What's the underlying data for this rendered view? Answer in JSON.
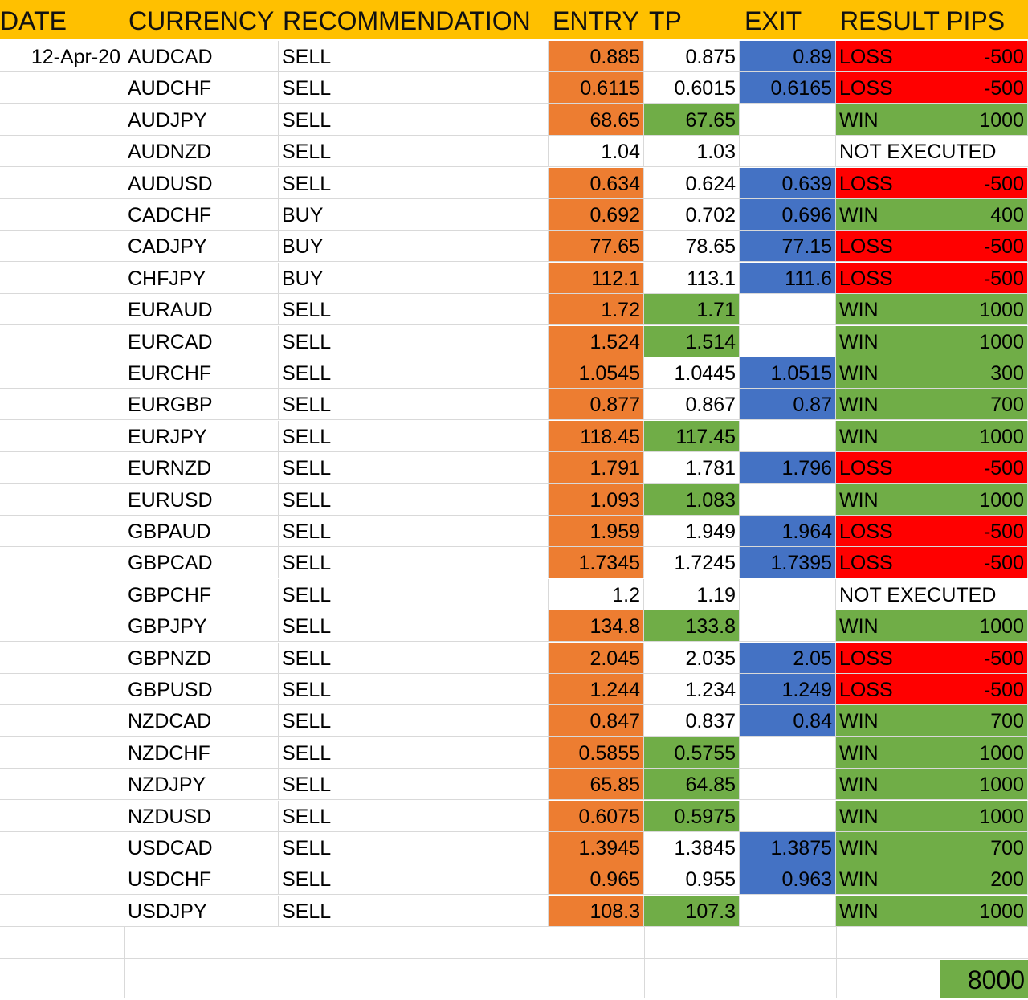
{
  "header": {
    "date": "DATE",
    "currency": "CURRENCY",
    "recommendation": "RECOMMENDATION",
    "entry": "ENTRY",
    "tp": "TP",
    "exit": "EXIT",
    "result_pips": "RESULT PIPS"
  },
  "colors": {
    "header": "#FFC000",
    "entry_filled": "#ED7D31",
    "tp_hit": "#70AD47",
    "exit_stop": "#4472C4",
    "loss": "#FF0000",
    "win": "#70AD47"
  },
  "rows": [
    {
      "date": "12-Apr-20",
      "currency": "AUDCAD",
      "rec": "SELL",
      "entry": "0.885",
      "tp": "0.875",
      "exit": "0.89",
      "result": "LOSS",
      "pips": "-500"
    },
    {
      "date": "",
      "currency": "AUDCHF",
      "rec": "SELL",
      "entry": "0.6115",
      "tp": "0.6015",
      "exit": "0.6165",
      "result": "LOSS",
      "pips": "-500"
    },
    {
      "date": "",
      "currency": "AUDJPY",
      "rec": "SELL",
      "entry": "68.65",
      "tp": "67.65",
      "exit": "",
      "result": "WIN",
      "pips": "1000"
    },
    {
      "date": "",
      "currency": "AUDNZD",
      "rec": "SELL",
      "entry": "1.04",
      "tp": "1.03",
      "exit": "",
      "result": "NOT EXECUTED",
      "pips": ""
    },
    {
      "date": "",
      "currency": "AUDUSD",
      "rec": "SELL",
      "entry": "0.634",
      "tp": "0.624",
      "exit": "0.639",
      "result": "LOSS",
      "pips": "-500"
    },
    {
      "date": "",
      "currency": "CADCHF",
      "rec": "BUY",
      "entry": "0.692",
      "tp": "0.702",
      "exit": "0.696",
      "result": "WIN",
      "pips": "400"
    },
    {
      "date": "",
      "currency": "CADJPY",
      "rec": "BUY",
      "entry": "77.65",
      "tp": "78.65",
      "exit": "77.15",
      "result": "LOSS",
      "pips": "-500"
    },
    {
      "date": "",
      "currency": "CHFJPY",
      "rec": "BUY",
      "entry": "112.1",
      "tp": "113.1",
      "exit": "111.6",
      "result": "LOSS",
      "pips": "-500"
    },
    {
      "date": "",
      "currency": "EURAUD",
      "rec": "SELL",
      "entry": "1.72",
      "tp": "1.71",
      "exit": "",
      "result": "WIN",
      "pips": "1000"
    },
    {
      "date": "",
      "currency": "EURCAD",
      "rec": "SELL",
      "entry": "1.524",
      "tp": "1.514",
      "exit": "",
      "result": "WIN",
      "pips": "1000"
    },
    {
      "date": "",
      "currency": "EURCHF",
      "rec": "SELL",
      "entry": "1.0545",
      "tp": "1.0445",
      "exit": "1.0515",
      "result": "WIN",
      "pips": "300"
    },
    {
      "date": "",
      "currency": "EURGBP",
      "rec": "SELL",
      "entry": "0.877",
      "tp": "0.867",
      "exit": "0.87",
      "result": "WIN",
      "pips": "700"
    },
    {
      "date": "",
      "currency": "EURJPY",
      "rec": "SELL",
      "entry": "118.45",
      "tp": "117.45",
      "exit": "",
      "result": "WIN",
      "pips": "1000"
    },
    {
      "date": "",
      "currency": "EURNZD",
      "rec": "SELL",
      "entry": "1.791",
      "tp": "1.781",
      "exit": "1.796",
      "result": "LOSS",
      "pips": "-500"
    },
    {
      "date": "",
      "currency": "EURUSD",
      "rec": "SELL",
      "entry": "1.093",
      "tp": "1.083",
      "exit": "",
      "result": "WIN",
      "pips": "1000"
    },
    {
      "date": "",
      "currency": "GBPAUD",
      "rec": "SELL",
      "entry": "1.959",
      "tp": "1.949",
      "exit": "1.964",
      "result": "LOSS",
      "pips": "-500"
    },
    {
      "date": "",
      "currency": "GBPCAD",
      "rec": "SELL",
      "entry": "1.7345",
      "tp": "1.7245",
      "exit": "1.7395",
      "result": "LOSS",
      "pips": "-500"
    },
    {
      "date": "",
      "currency": "GBPCHF",
      "rec": "SELL",
      "entry": "1.2",
      "tp": "1.19",
      "exit": "",
      "result": "NOT EXECUTED",
      "pips": ""
    },
    {
      "date": "",
      "currency": "GBPJPY",
      "rec": "SELL",
      "entry": "134.8",
      "tp": "133.8",
      "exit": "",
      "result": "WIN",
      "pips": "1000"
    },
    {
      "date": "",
      "currency": "GBPNZD",
      "rec": "SELL",
      "entry": "2.045",
      "tp": "2.035",
      "exit": "2.05",
      "result": "LOSS",
      "pips": "-500"
    },
    {
      "date": "",
      "currency": "GBPUSD",
      "rec": "SELL",
      "entry": "1.244",
      "tp": "1.234",
      "exit": "1.249",
      "result": "LOSS",
      "pips": "-500"
    },
    {
      "date": "",
      "currency": "NZDCAD",
      "rec": "SELL",
      "entry": "0.847",
      "tp": "0.837",
      "exit": "0.84",
      "result": "WIN",
      "pips": "700"
    },
    {
      "date": "",
      "currency": "NZDCHF",
      "rec": "SELL",
      "entry": "0.5855",
      "tp": "0.5755",
      "exit": "",
      "result": "WIN",
      "pips": "1000"
    },
    {
      "date": "",
      "currency": "NZDJPY",
      "rec": "SELL",
      "entry": "65.85",
      "tp": "64.85",
      "exit": "",
      "result": "WIN",
      "pips": "1000"
    },
    {
      "date": "",
      "currency": "NZDUSD",
      "rec": "SELL",
      "entry": "0.6075",
      "tp": "0.5975",
      "exit": "",
      "result": "WIN",
      "pips": "1000"
    },
    {
      "date": "",
      "currency": "USDCAD",
      "rec": "SELL",
      "entry": "1.3945",
      "tp": "1.3845",
      "exit": "1.3875",
      "result": "WIN",
      "pips": "700"
    },
    {
      "date": "",
      "currency": "USDCHF",
      "rec": "SELL",
      "entry": "0.965",
      "tp": "0.955",
      "exit": "0.963",
      "result": "WIN",
      "pips": "200"
    },
    {
      "date": "",
      "currency": "USDJPY",
      "rec": "SELL",
      "entry": "108.3",
      "tp": "107.3",
      "exit": "",
      "result": "WIN",
      "pips": "1000"
    }
  ],
  "total_pips": "8000"
}
